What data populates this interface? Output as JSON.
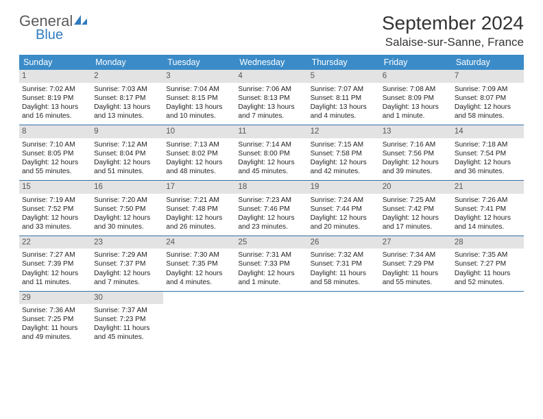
{
  "logo": {
    "word1": "General",
    "word2": "Blue"
  },
  "title": "September 2024",
  "location": "Salaise-sur-Sanne, France",
  "colors": {
    "header_bg": "#3b8bc8",
    "header_text": "#ffffff",
    "daynum_bg": "#e3e3e3",
    "week_divider": "#2f6fa6",
    "logo_gray": "#5a5a5a",
    "logo_blue": "#2f7bbf"
  },
  "days_of_week": [
    "Sunday",
    "Monday",
    "Tuesday",
    "Wednesday",
    "Thursday",
    "Friday",
    "Saturday"
  ],
  "weeks": [
    [
      {
        "n": "1",
        "sunrise": "7:02 AM",
        "sunset": "8:19 PM",
        "daylight": "13 hours and 16 minutes."
      },
      {
        "n": "2",
        "sunrise": "7:03 AM",
        "sunset": "8:17 PM",
        "daylight": "13 hours and 13 minutes."
      },
      {
        "n": "3",
        "sunrise": "7:04 AM",
        "sunset": "8:15 PM",
        "daylight": "13 hours and 10 minutes."
      },
      {
        "n": "4",
        "sunrise": "7:06 AM",
        "sunset": "8:13 PM",
        "daylight": "13 hours and 7 minutes."
      },
      {
        "n": "5",
        "sunrise": "7:07 AM",
        "sunset": "8:11 PM",
        "daylight": "13 hours and 4 minutes."
      },
      {
        "n": "6",
        "sunrise": "7:08 AM",
        "sunset": "8:09 PM",
        "daylight": "13 hours and 1 minute."
      },
      {
        "n": "7",
        "sunrise": "7:09 AM",
        "sunset": "8:07 PM",
        "daylight": "12 hours and 58 minutes."
      }
    ],
    [
      {
        "n": "8",
        "sunrise": "7:10 AM",
        "sunset": "8:05 PM",
        "daylight": "12 hours and 55 minutes."
      },
      {
        "n": "9",
        "sunrise": "7:12 AM",
        "sunset": "8:04 PM",
        "daylight": "12 hours and 51 minutes."
      },
      {
        "n": "10",
        "sunrise": "7:13 AM",
        "sunset": "8:02 PM",
        "daylight": "12 hours and 48 minutes."
      },
      {
        "n": "11",
        "sunrise": "7:14 AM",
        "sunset": "8:00 PM",
        "daylight": "12 hours and 45 minutes."
      },
      {
        "n": "12",
        "sunrise": "7:15 AM",
        "sunset": "7:58 PM",
        "daylight": "12 hours and 42 minutes."
      },
      {
        "n": "13",
        "sunrise": "7:16 AM",
        "sunset": "7:56 PM",
        "daylight": "12 hours and 39 minutes."
      },
      {
        "n": "14",
        "sunrise": "7:18 AM",
        "sunset": "7:54 PM",
        "daylight": "12 hours and 36 minutes."
      }
    ],
    [
      {
        "n": "15",
        "sunrise": "7:19 AM",
        "sunset": "7:52 PM",
        "daylight": "12 hours and 33 minutes."
      },
      {
        "n": "16",
        "sunrise": "7:20 AM",
        "sunset": "7:50 PM",
        "daylight": "12 hours and 30 minutes."
      },
      {
        "n": "17",
        "sunrise": "7:21 AM",
        "sunset": "7:48 PM",
        "daylight": "12 hours and 26 minutes."
      },
      {
        "n": "18",
        "sunrise": "7:23 AM",
        "sunset": "7:46 PM",
        "daylight": "12 hours and 23 minutes."
      },
      {
        "n": "19",
        "sunrise": "7:24 AM",
        "sunset": "7:44 PM",
        "daylight": "12 hours and 20 minutes."
      },
      {
        "n": "20",
        "sunrise": "7:25 AM",
        "sunset": "7:42 PM",
        "daylight": "12 hours and 17 minutes."
      },
      {
        "n": "21",
        "sunrise": "7:26 AM",
        "sunset": "7:41 PM",
        "daylight": "12 hours and 14 minutes."
      }
    ],
    [
      {
        "n": "22",
        "sunrise": "7:27 AM",
        "sunset": "7:39 PM",
        "daylight": "12 hours and 11 minutes."
      },
      {
        "n": "23",
        "sunrise": "7:29 AM",
        "sunset": "7:37 PM",
        "daylight": "12 hours and 7 minutes."
      },
      {
        "n": "24",
        "sunrise": "7:30 AM",
        "sunset": "7:35 PM",
        "daylight": "12 hours and 4 minutes."
      },
      {
        "n": "25",
        "sunrise": "7:31 AM",
        "sunset": "7:33 PM",
        "daylight": "12 hours and 1 minute."
      },
      {
        "n": "26",
        "sunrise": "7:32 AM",
        "sunset": "7:31 PM",
        "daylight": "11 hours and 58 minutes."
      },
      {
        "n": "27",
        "sunrise": "7:34 AM",
        "sunset": "7:29 PM",
        "daylight": "11 hours and 55 minutes."
      },
      {
        "n": "28",
        "sunrise": "7:35 AM",
        "sunset": "7:27 PM",
        "daylight": "11 hours and 52 minutes."
      }
    ],
    [
      {
        "n": "29",
        "sunrise": "7:36 AM",
        "sunset": "7:25 PM",
        "daylight": "11 hours and 49 minutes."
      },
      {
        "n": "30",
        "sunrise": "7:37 AM",
        "sunset": "7:23 PM",
        "daylight": "11 hours and 45 minutes."
      },
      {
        "empty": true
      },
      {
        "empty": true
      },
      {
        "empty": true
      },
      {
        "empty": true
      },
      {
        "empty": true
      }
    ]
  ],
  "labels": {
    "sunrise": "Sunrise: ",
    "sunset": "Sunset: ",
    "daylight": "Daylight: "
  }
}
